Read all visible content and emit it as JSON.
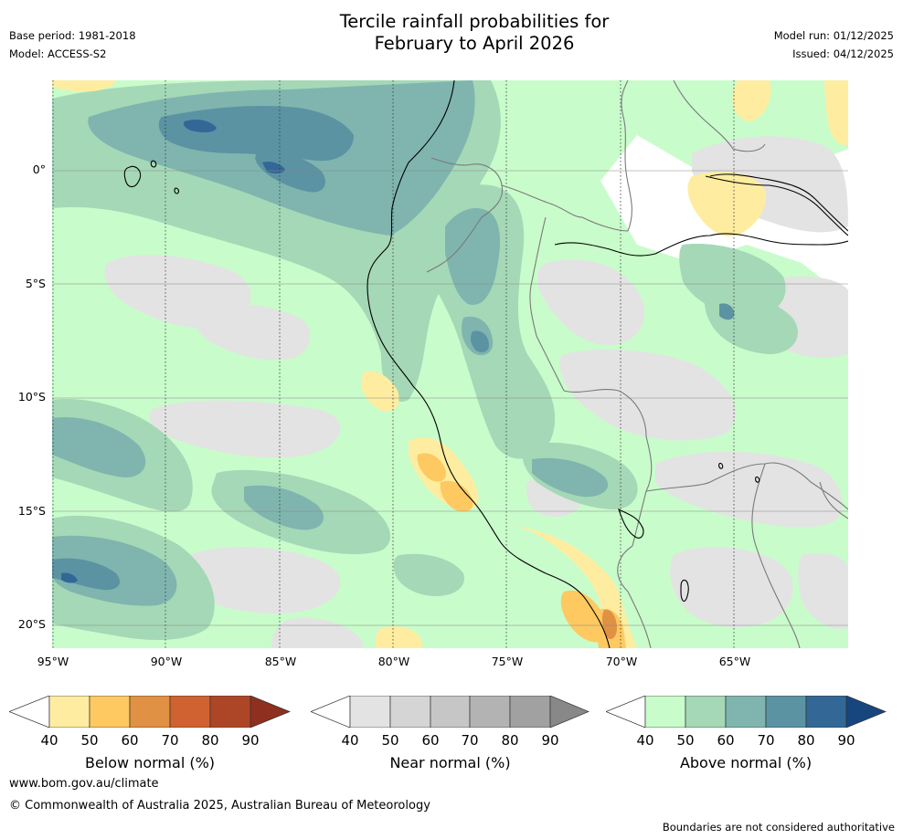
{
  "title_line1": "Tercile rainfall probabilities for",
  "title_line2": "February to April 2026",
  "base_period": "Base period: 1981-2018",
  "model": "Model: ACCESS-S2",
  "model_run": "Model run: 01/12/2025",
  "issued": "Issued: 04/12/2025",
  "lat_labels": [
    "0°",
    "5°S",
    "10°S",
    "15°S",
    "20°S"
  ],
  "lon_labels": [
    "95°W",
    "90°W",
    "85°W",
    "80°W",
    "75°W",
    "70°W",
    "65°W"
  ],
  "colorbars": [
    {
      "label": "Below normal (%)",
      "ticks": [
        "40",
        "50",
        "60",
        "70",
        "80",
        "90"
      ],
      "colors": [
        "#ffffff",
        "#feeda0",
        "#fdc960",
        "#e19143",
        "#cf6230",
        "#ad4627",
        "#8e2f1f"
      ]
    },
    {
      "label": "Near normal (%)",
      "ticks": [
        "40",
        "50",
        "60",
        "70",
        "80",
        "90"
      ],
      "colors": [
        "#ffffff",
        "#e3e3e3",
        "#d5d5d5",
        "#c6c6c6",
        "#b3b3b3",
        "#a1a1a1",
        "#888888"
      ]
    },
    {
      "label": "Above normal (%)",
      "ticks": [
        "40",
        "50",
        "60",
        "70",
        "80",
        "90"
      ],
      "colors": [
        "#ffffff",
        "#c9fccb",
        "#a5d8b6",
        "#7fb5ae",
        "#5b93a3",
        "#336796",
        "#17467e"
      ]
    }
  ],
  "website": "www.bom.gov.au/climate",
  "copyright": "© Commonwealth of Australia 2025, Australian Bureau of Meteorology",
  "disclaimer": "Boundaries are not considered authoritative"
}
